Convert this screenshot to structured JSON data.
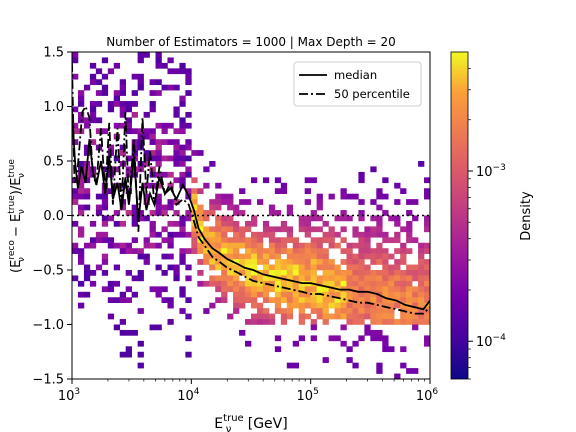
{
  "chart_data": {
    "type": "heatmap",
    "title": "Number of Estimators = 1000 | Max Depth = 20",
    "xlabel": {
      "base": "E",
      "sub": "ν",
      "sup": "true",
      "suffix": " [GeV]"
    },
    "ylabel": {
      "text": "(E_ν^reco − E_ν^true)/E_ν^true"
    },
    "x_scale": "log",
    "xlim": [
      1000,
      1000000
    ],
    "ylim": [
      -1.5,
      1.5
    ],
    "x_ticks": [
      {
        "value": 1000,
        "base": "10",
        "exp": "3"
      },
      {
        "value": 10000,
        "base": "10",
        "exp": "4"
      },
      {
        "value": 100000,
        "base": "10",
        "exp": "5"
      },
      {
        "value": 1000000,
        "base": "10",
        "exp": "6"
      }
    ],
    "y_ticks": [
      "1.5",
      "1.0",
      "0.5",
      "0.0",
      "−0.5",
      "−1.0",
      "−1.5"
    ],
    "y_tick_values": [
      1.5,
      1.0,
      0.5,
      0.0,
      -0.5,
      -1.0,
      -1.5
    ],
    "reference_line": {
      "y": 0.0,
      "style": "dotted"
    },
    "legend": {
      "placement": "top-right",
      "entries": [
        {
          "label": "median",
          "style": "solid"
        },
        {
          "label": "50 percentile",
          "style": "dashdot"
        }
      ]
    },
    "colorbar": {
      "label": "Density",
      "scale": "log",
      "colormap": "plasma",
      "range": [
        6e-05,
        0.005
      ],
      "ticks": [
        {
          "value": 0.0001,
          "base": "10",
          "exp": "−4"
        },
        {
          "value": 0.001,
          "base": "10",
          "exp": "−3"
        }
      ]
    },
    "series": [
      {
        "name": "median",
        "x": [
          1000,
          1060,
          1120,
          1200,
          1300,
          1400,
          1500,
          1600,
          1750,
          1900,
          2050,
          2200,
          2400,
          2600,
          2800,
          3000,
          3300,
          3600,
          3900,
          4200,
          4500,
          4900,
          5400,
          6000,
          6700,
          7500,
          8500,
          9500,
          10500,
          11500,
          13000,
          15000,
          17000,
          20000,
          24000,
          28000,
          33000,
          40000,
          48000,
          58000,
          70000,
          85000,
          100000,
          120000,
          145000,
          175000,
          210000,
          250000,
          300000,
          360000,
          430000,
          520000,
          620000,
          740000,
          880000,
          1000000
        ],
        "y": [
          0.95,
          0.5,
          0.25,
          0.45,
          0.3,
          0.7,
          0.4,
          0.28,
          0.5,
          0.2,
          0.55,
          0.15,
          0.3,
          0.05,
          0.35,
          0.1,
          0.55,
          -0.05,
          0.3,
          0.05,
          0.2,
          0.1,
          0.35,
          0.2,
          0.25,
          0.15,
          0.28,
          0.18,
          0.05,
          -0.12,
          -0.22,
          -0.3,
          -0.34,
          -0.4,
          -0.44,
          -0.48,
          -0.5,
          -0.54,
          -0.56,
          -0.58,
          -0.6,
          -0.62,
          -0.62,
          -0.64,
          -0.66,
          -0.68,
          -0.68,
          -0.7,
          -0.7,
          -0.72,
          -0.76,
          -0.78,
          -0.82,
          -0.84,
          -0.86,
          -0.78
        ]
      },
      {
        "name": "50 percentile",
        "x": [
          1000,
          1050,
          1100,
          1150,
          1220,
          1300,
          1400,
          1500,
          1600,
          1750,
          1900,
          2050,
          2200,
          2400,
          2600,
          2800,
          3000,
          3300,
          3600,
          3900,
          4200,
          4500,
          4900,
          5400,
          6000,
          6700,
          7500,
          8500,
          9500,
          10500,
          11500,
          13000,
          15000,
          17000,
          20000,
          24000,
          28000,
          33000,
          40000,
          48000,
          58000,
          70000,
          85000,
          100000,
          120000,
          145000,
          175000,
          210000,
          250000,
          300000,
          360000,
          430000,
          520000,
          620000,
          740000,
          880000,
          1000000
        ],
        "y": [
          1.4,
          0.3,
          0.35,
          0.6,
          0.95,
          1.0,
          0.9,
          0.35,
          0.3,
          0.8,
          0.2,
          0.85,
          0.1,
          0.8,
          0.05,
          0.95,
          0.1,
          0.7,
          -0.15,
          0.9,
          0.2,
          0.6,
          0.1,
          0.45,
          0.2,
          0.3,
          0.1,
          0.15,
          0.1,
          -0.05,
          -0.2,
          -0.28,
          -0.38,
          -0.42,
          -0.48,
          -0.52,
          -0.56,
          -0.6,
          -0.62,
          -0.64,
          -0.66,
          -0.68,
          -0.7,
          -0.72,
          -0.72,
          -0.74,
          -0.76,
          -0.78,
          -0.8,
          -0.8,
          -0.82,
          -0.84,
          -0.86,
          -0.88,
          -0.9,
          -0.9,
          -0.84
        ]
      }
    ]
  }
}
